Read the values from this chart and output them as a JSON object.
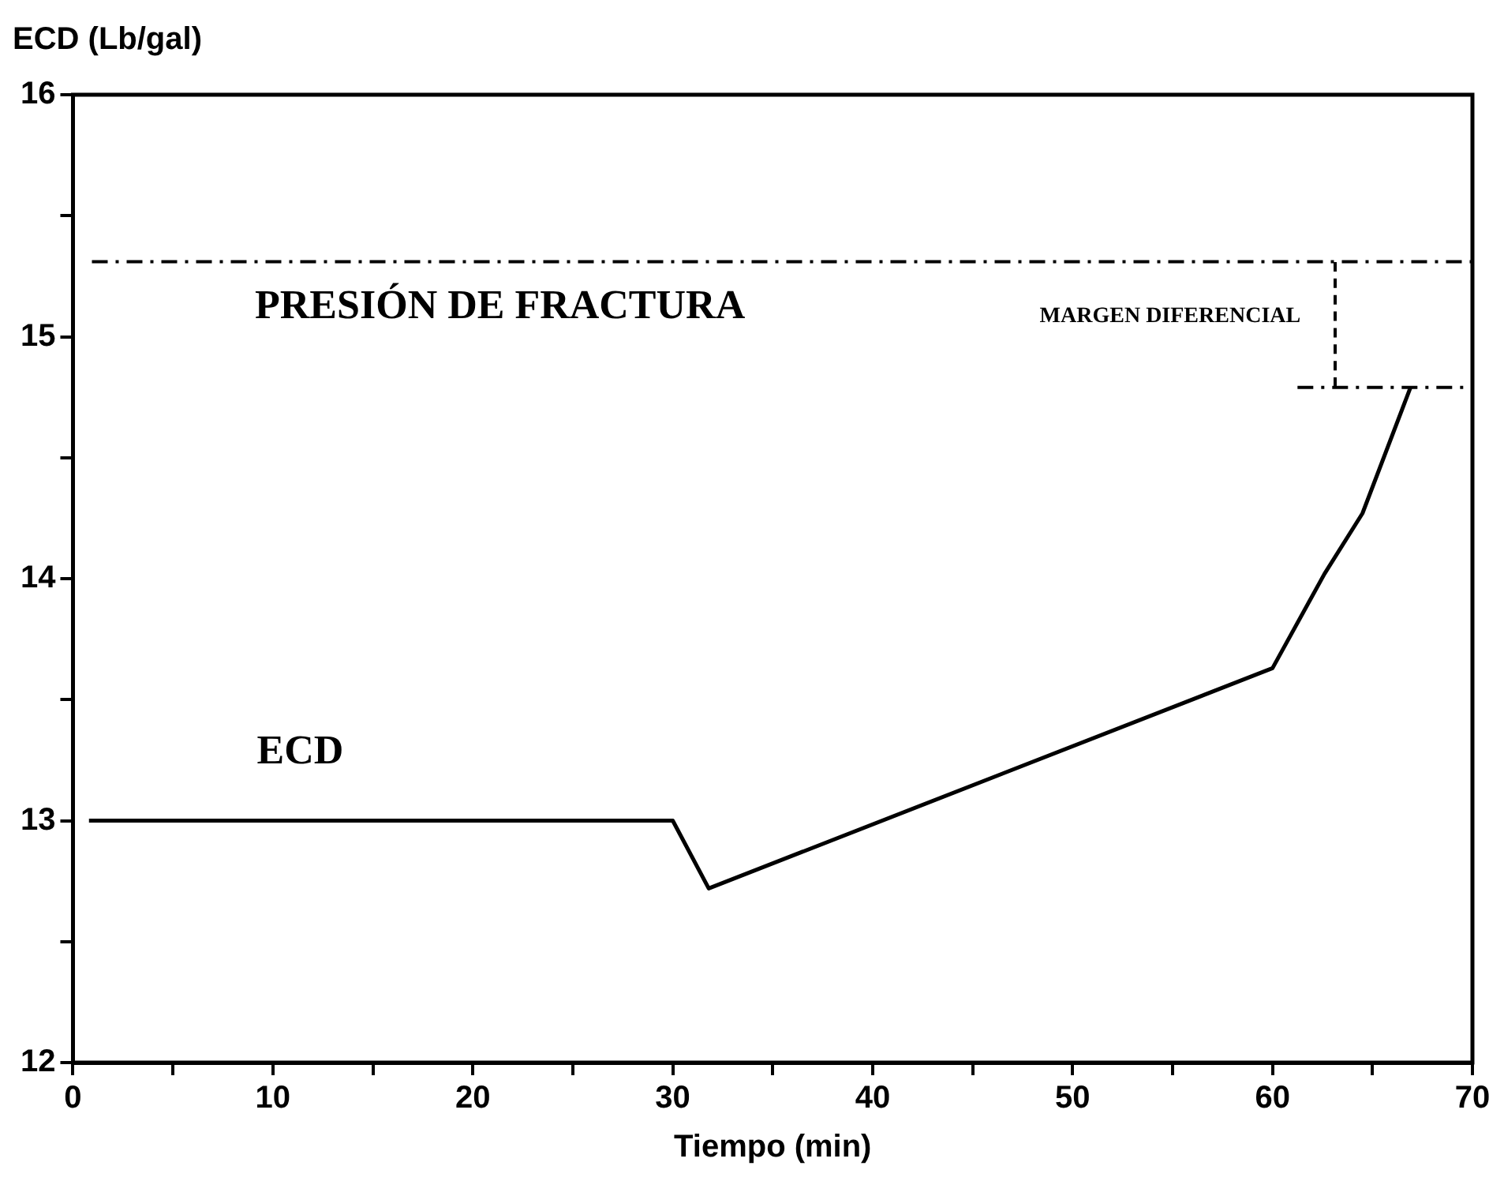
{
  "chart_data": {
    "type": "line",
    "xlabel": "Tiempo (min)",
    "ylabel": "ECD (Lb/gal)",
    "xlim": [
      0,
      70
    ],
    "ylim": [
      12,
      16
    ],
    "xticks": [
      0,
      {
        "value": 5,
        "label": null
      },
      10,
      {
        "value": 15,
        "label": null
      },
      20,
      {
        "value": 25,
        "label": null
      },
      30,
      {
        "value": 35,
        "label": null
      },
      40,
      {
        "value": 45,
        "label": null
      },
      50,
      {
        "value": 55,
        "label": null
      },
      60,
      {
        "value": 65,
        "label": null
      },
      70
    ],
    "yticks": [
      12,
      {
        "value": 12.5,
        "label": null
      },
      13,
      {
        "value": 13.5,
        "label": null
      },
      14,
      {
        "value": 14.5,
        "label": null
      },
      15,
      {
        "value": 15.5,
        "label": null
      },
      16
    ],
    "series": [
      {
        "name": "ECD",
        "color": "#000000",
        "x": [
          0.8,
          30,
          31.8,
          60,
          62.6,
          64.5,
          66.9
        ],
        "values": [
          13.0,
          13.0,
          12.72,
          13.63,
          14.02,
          14.27,
          14.79
        ]
      }
    ],
    "ref_lines": [
      {
        "axis": "y",
        "value": 15.31,
        "label": "PRESIÓN DE FRACTURA",
        "line_style": "dashed",
        "color": "#000000"
      },
      {
        "axis": "y",
        "value": 14.79,
        "label": "MARGEN DIFERENCIAL",
        "line_style": "dashed",
        "color": "#000000"
      }
    ],
    "grid": false,
    "legend": false,
    "marker": "none",
    "line_style": "solid"
  }
}
